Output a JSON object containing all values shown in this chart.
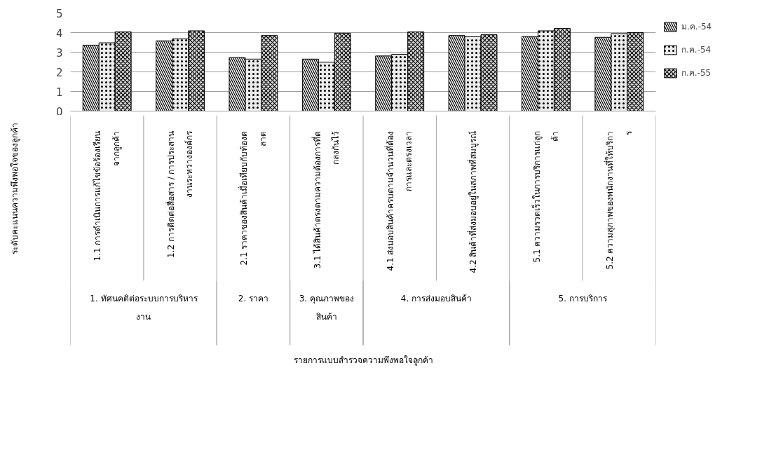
{
  "chart_data": {
    "type": "bar",
    "categories": [
      "1.1 การดำเนินการแก้ไขข้อร้องเรียนจากลูกค้า",
      "1.2 การติดต่อสื่อสาร / การประสานงานระหว่างองค์กร",
      "2.1 ราคาของสินค้าเมื่อเทียบกับท้องตลาด",
      "3.1 ได้สินค้าตรงตามความต้องการที่ตกลงกันไว้",
      "4.1 ส่งมอบสินค้าครบตามจำนวนที่ต้องการและตรงเวลา",
      "4.2 สินค้าที่ส่งมอบอยู่ในสภาพที่สมบูรณ์",
      "5.1 ความรวดเร็วในการบริการแก่ลูกค้า",
      "5.2 ความสุภาพของพนักงานที่ให้บริการ"
    ],
    "series": [
      {
        "name": "ม.ค.-54",
        "color": "#f6f6f6",
        "values": [
          3.36,
          3.58,
          2.73,
          2.65,
          2.81,
          3.85,
          3.8,
          3.76
        ]
      },
      {
        "name": "ก.ค.-54",
        "color": "#ececec",
        "values": [
          3.48,
          3.68,
          2.65,
          2.49,
          2.89,
          3.79,
          4.09,
          3.95
        ]
      },
      {
        "name": "ก.ค.-55",
        "color": "#d9d9d9",
        "values": [
          4.04,
          4.09,
          3.85,
          3.97,
          4.04,
          3.89,
          4.21,
          4.0
        ]
      }
    ],
    "ylabel": "ระดับคะแนนความพึงพอใจของลูกค้า",
    "annotations": [
      "1. ทัศนคติต่อระบบการบริหารงาน",
      "2. ราคา",
      "3. คุณภาพของสินค้า",
      "4. การส่งมอบสินค้า",
      "5. การบริการ",
      "รายการแบบสำรวจความพึงพอใจลูกค้า"
    ],
    "ylim": [
      0,
      5
    ],
    "yticks": [
      0,
      1,
      2,
      3,
      4,
      5
    ],
    "grid": "y",
    "legend": "right"
  }
}
